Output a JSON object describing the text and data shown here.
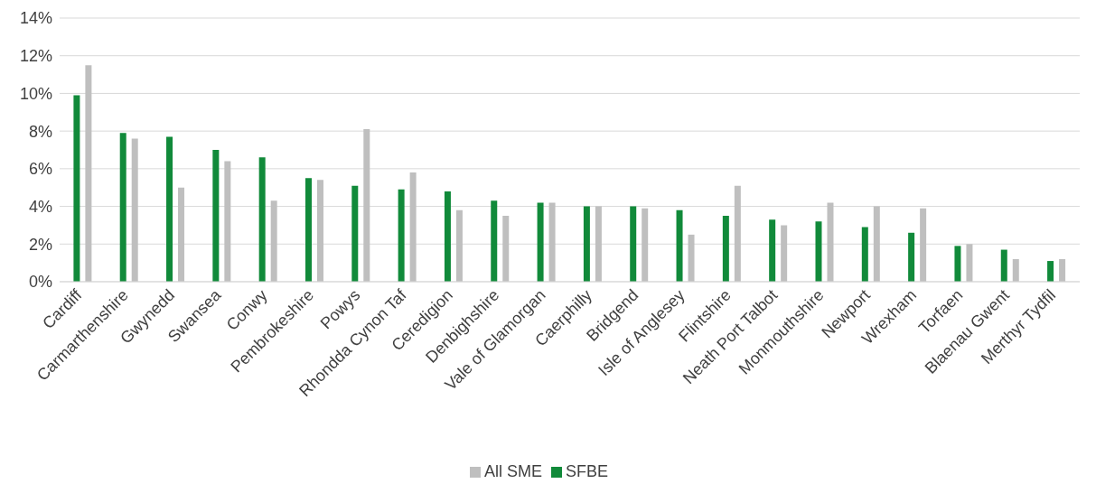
{
  "chart_data": {
    "type": "bar",
    "categories": [
      "Cardiff",
      "Carmarthenshire",
      "Gwynedd",
      "Swansea",
      "Conwy",
      "Pembrokeshire",
      "Powys",
      "Rhondda Cynon Taf",
      "Ceredigion",
      "Denbighshire",
      "Vale of Glamorgan",
      "Caerphilly",
      "Bridgend",
      "Isle of Anglesey",
      "Flintshire",
      "Neath Port Talbot",
      "Monmouthshire",
      "Newport",
      "Wrexham",
      "Torfaen",
      "Blaenau Gwent",
      "Merthyr Tydfil"
    ],
    "series": [
      {
        "name": "SFBE",
        "color": "#118a3a",
        "values": [
          9.9,
          7.9,
          7.7,
          7.0,
          6.6,
          5.5,
          5.1,
          4.9,
          4.8,
          4.3,
          4.2,
          4.0,
          4.0,
          3.8,
          3.5,
          3.3,
          3.2,
          2.9,
          2.6,
          1.9,
          1.7,
          1.1
        ]
      },
      {
        "name": "All SME",
        "color": "#bfbfbf",
        "values": [
          11.5,
          7.6,
          5.0,
          6.4,
          4.3,
          5.4,
          8.1,
          5.8,
          3.8,
          3.5,
          4.2,
          4.0,
          3.9,
          2.5,
          5.1,
          3.0,
          4.2,
          4.0,
          3.9,
          2.0,
          1.2,
          1.2
        ]
      }
    ],
    "ylim": [
      0,
      14
    ],
    "yticks": [
      {
        "value": 0,
        "label": "0%"
      },
      {
        "value": 2,
        "label": "2%"
      },
      {
        "value": 4,
        "label": "4%"
      },
      {
        "value": 6,
        "label": "6%"
      },
      {
        "value": 8,
        "label": "8%"
      },
      {
        "value": 10,
        "label": "10%"
      },
      {
        "value": 12,
        "label": "12%"
      },
      {
        "value": 14,
        "label": "14%"
      }
    ],
    "grid": "y",
    "legend": "bottom"
  }
}
